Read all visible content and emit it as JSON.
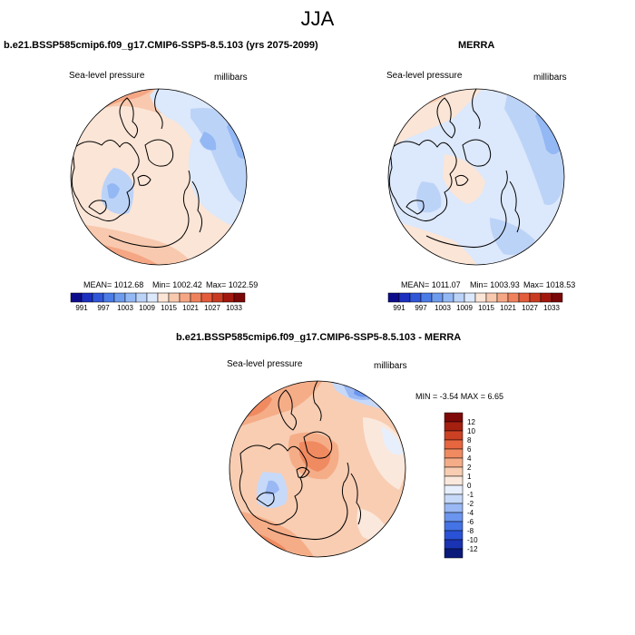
{
  "figure": {
    "season": "JJA",
    "panels": [
      {
        "id": "model",
        "title": "b.e21.BSSP585cmip6.f09_g17.CMIP6-SSP5-8.5.103 (yrs 2075-2099)",
        "variable": "Sea-level pressure",
        "units": "millibars",
        "mean_text": "MEAN= 1012.68",
        "min_text": "Min= 1002.42",
        "max_text": "Max= 1022.59",
        "colorbar_ticks": [
          "991",
          "997",
          "1003",
          "1009",
          "1015",
          "1021",
          "1027",
          "1033"
        ]
      },
      {
        "id": "obs",
        "title": "MERRA",
        "variable": "Sea-level pressure",
        "units": "millibars",
        "mean_text": "MEAN= 1011.07",
        "min_text": "Min= 1003.93",
        "max_text": "Max= 1018.53",
        "colorbar_ticks": [
          "991",
          "997",
          "1003",
          "1009",
          "1015",
          "1021",
          "1027",
          "1033"
        ]
      },
      {
        "id": "diff",
        "title": "b.e21.BSSP585cmip6.f09_g17.CMIP6-SSP5-8.5.103 - MERRA",
        "variable": "Sea-level pressure",
        "units": "millibars",
        "minmax_text": "MIN =  -3.54 MAX =   6.65",
        "colorbar_ticks": [
          "12",
          "10",
          "8",
          "6",
          "4",
          "2",
          "1",
          "0",
          "-1",
          "-2",
          "-4",
          "-6",
          "-8",
          "-10",
          "-12"
        ]
      }
    ]
  },
  "chart_data": {
    "type": "heatmap",
    "projection": "north polar stereographic",
    "maps": [
      {
        "panel": "model",
        "mean": 1012.68,
        "min": 1002.42,
        "max": 1022.59,
        "levels": [
          991,
          997,
          1003,
          1009,
          1015,
          1021,
          1027,
          1033
        ]
      },
      {
        "panel": "obs",
        "mean": 1011.07,
        "min": 1003.93,
        "max": 1018.53,
        "levels": [
          991,
          997,
          1003,
          1009,
          1015,
          1021,
          1027,
          1033
        ]
      },
      {
        "panel": "diff",
        "min": -3.54,
        "max": 6.65,
        "levels": [
          -12,
          -10,
          -8,
          -6,
          -4,
          -2,
          -1,
          0,
          1,
          2,
          4,
          6,
          8,
          10,
          12
        ]
      }
    ],
    "abs_colors": [
      "#0d0d8c",
      "#1c2fbf",
      "#2f55d8",
      "#4a7be6",
      "#6d9bee",
      "#93b8f4",
      "#bcd3f8",
      "#dce8fb",
      "#fbe5d6",
      "#f8c9ae",
      "#f5a684",
      "#ef825d",
      "#e35c3c",
      "#c93a22",
      "#a3180e",
      "#7a0707"
    ],
    "diff_colors": [
      "#0a1a7a",
      "#1a33b3",
      "#2a52d6",
      "#4473e6",
      "#6b95ee",
      "#9ab8f4",
      "#c7d9f9",
      "#e7effc",
      "#fbe8dc",
      "#f8cdb2",
      "#f5ad88",
      "#f08a60",
      "#e6663f",
      "#cc4124",
      "#a5200f",
      "#7f0909"
    ]
  }
}
